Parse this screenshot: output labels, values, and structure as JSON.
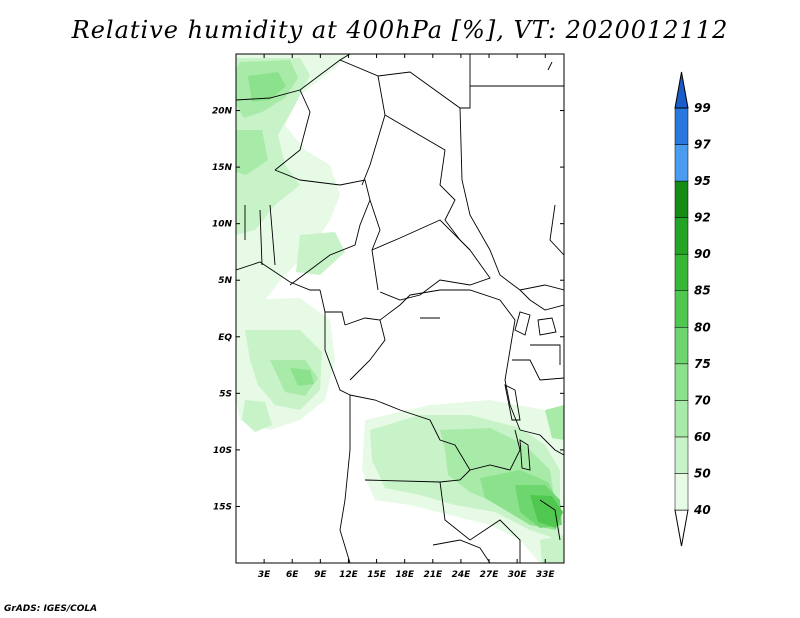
{
  "title": "Relative humidity at 400hPa [%], VT: 2020012112",
  "footer": "GrADS: IGES/COLA",
  "map": {
    "lon_range": [
      0,
      35
    ],
    "lat_range": [
      -20,
      25
    ],
    "lon_ticks": [
      {
        "value": 3,
        "label": "3E"
      },
      {
        "value": 6,
        "label": "6E"
      },
      {
        "value": 9,
        "label": "9E"
      },
      {
        "value": 12,
        "label": "12E"
      },
      {
        "value": 15,
        "label": "15E"
      },
      {
        "value": 18,
        "label": "18E"
      },
      {
        "value": 21,
        "label": "21E"
      },
      {
        "value": 24,
        "label": "24E"
      },
      {
        "value": 27,
        "label": "27E"
      },
      {
        "value": 30,
        "label": "30E"
      },
      {
        "value": 33,
        "label": "33E"
      }
    ],
    "lat_ticks": [
      {
        "value": 20,
        "label": "20N"
      },
      {
        "value": 15,
        "label": "15N"
      },
      {
        "value": 10,
        "label": "10N"
      },
      {
        "value": 5,
        "label": "5N"
      },
      {
        "value": 0,
        "label": "EQ"
      },
      {
        "value": -5,
        "label": "5S"
      },
      {
        "value": -10,
        "label": "10S"
      },
      {
        "value": -15,
        "label": "15S"
      }
    ]
  },
  "colorbar": {
    "levels": [
      "40",
      "50",
      "60",
      "70",
      "75",
      "80",
      "85",
      "90",
      "92",
      "95",
      "97",
      "99"
    ],
    "colors": [
      "#e6fae6",
      "#c8f2c8",
      "#a8eaa8",
      "#8ce28c",
      "#6ed66e",
      "#50c850",
      "#36b836",
      "#24a424",
      "#148c14",
      "#4a9cf0",
      "#2878e0",
      "#1a5cc8"
    ]
  }
}
